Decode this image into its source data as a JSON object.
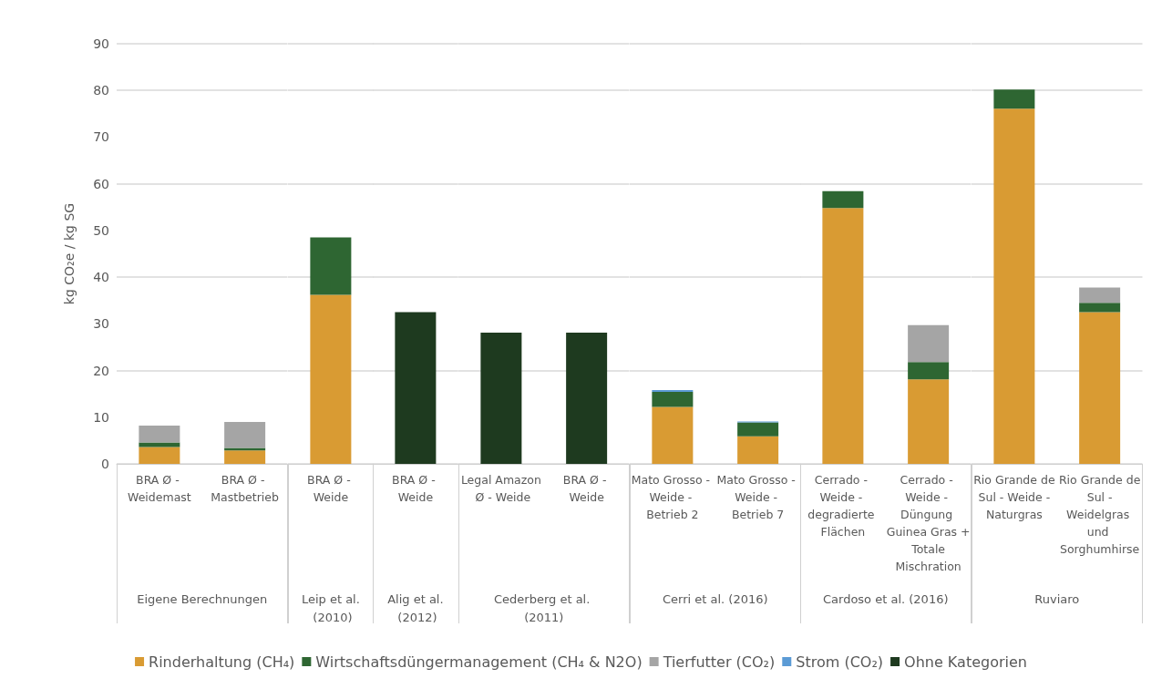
{
  "chart_data": [
    {
      "type": "bar",
      "stacked": true,
      "ylabel": "kg CO₂e / kg SG",
      "xlabel": "Eigene Berechnungen",
      "categories": [
        "BRA Ø - Weidemast",
        "BRA Ø - Mastbetrieb"
      ],
      "ylim": [
        0,
        90
      ],
      "yticks": [
        0,
        10,
        20,
        30,
        40,
        50,
        60,
        70,
        80,
        90
      ],
      "grid": "y",
      "legend": "bottom",
      "series": [
        {
          "name": "Rinderhaltung (CH₄)",
          "color": "#d99b33",
          "values": [
            3.6,
            2.9
          ]
        },
        {
          "name": "Wirtschaftsdüngermanagement (CH₄ & N2O)",
          "color": "#2e6632",
          "values": [
            1.0,
            0.5
          ]
        },
        {
          "name": "Tierfutter (CO₂)",
          "color": "#a5a5a5",
          "values": [
            3.6,
            5.6
          ]
        },
        {
          "name": "Strom (CO₂)",
          "color": "#5b9bd5",
          "values": [
            null,
            null
          ]
        },
        {
          "name": "Ohne Kategorien",
          "color": "#1e3a1f",
          "values": [
            null,
            null
          ]
        }
      ]
    },
    {
      "type": "bar",
      "stacked": true,
      "xlabel": "Leip et al. (2010)",
      "categories": [
        "BRA Ø - Weide"
      ],
      "ylim": [
        0,
        90
      ],
      "yticks": [
        0,
        10,
        20,
        30,
        40,
        50,
        60,
        70,
        80,
        90
      ],
      "grid": "y",
      "tick_labels": "x",
      "series": [
        {
          "color": "#d99b33",
          "values": [
            36.2
          ]
        },
        {
          "color": "#2e6632",
          "values": [
            12.3
          ]
        }
      ]
    },
    {
      "type": "bar",
      "stacked": true,
      "xlabel": "Alig et al. (2012)",
      "categories": [
        "BRA Ø - Weide"
      ],
      "ylim": [
        0,
        90
      ],
      "yticks": [
        0,
        10,
        20,
        30,
        40,
        50,
        60,
        70,
        80,
        90
      ],
      "grid": "y",
      "tick_labels": "x",
      "series": [
        {
          "color": "#1e3a1f",
          "values": [
            32.5
          ]
        }
      ]
    },
    {
      "type": "bar",
      "stacked": true,
      "xlabel": "Cederberg et al. (2011)",
      "categories": [
        "Legal Amazon Ø - Weide",
        "BRA Ø - Weide"
      ],
      "ylim": [
        0,
        90
      ],
      "yticks": [
        0,
        10,
        20,
        30,
        40,
        50,
        60,
        70,
        80,
        90
      ],
      "grid": "y",
      "tick_labels": "x",
      "series": [
        {
          "color": "#1e3a1f",
          "values": [
            28.1,
            28.1
          ]
        }
      ]
    },
    {
      "type": "bar",
      "stacked": true,
      "xlabel": "Cerri et al. (2016)",
      "categories": [
        "Mato Grosso - Weide - Betrieb 2",
        "Mato Grosso - Weide - Betrieb 7"
      ],
      "ylim": [
        0,
        90
      ],
      "yticks": [
        0,
        10,
        20,
        30,
        40,
        50,
        60,
        70,
        80,
        90
      ],
      "grid": "y",
      "tick_labels": "x",
      "series": [
        {
          "color": "#d99b33",
          "values": [
            12.2,
            5.9
          ]
        },
        {
          "color": "#2e6632",
          "values": [
            3.2,
            3.0
          ]
        },
        {
          "color": "#5b9bd5",
          "values": [
            0.4,
            0.2
          ]
        }
      ]
    },
    {
      "type": "bar",
      "stacked": true,
      "xlabel": "Cardoso et al. (2016)",
      "categories": [
        "Cerrado - Weide - degradierte Flächen",
        "Cerrado - Weide - Düngung Guinea Gras + Totale Mischration"
      ],
      "ylim": [
        0,
        90
      ],
      "yticks": [
        0,
        10,
        20,
        30,
        40,
        50,
        60,
        70,
        80,
        90
      ],
      "grid": "y",
      "tick_labels": "x",
      "series": [
        {
          "color": "#d99b33",
          "values": [
            54.8,
            18.1
          ]
        },
        {
          "color": "#2e6632",
          "values": [
            3.6,
            3.7
          ]
        },
        {
          "color": "#a5a5a5",
          "values": [
            null,
            7.9
          ]
        }
      ]
    },
    {
      "type": "bar",
      "stacked": true,
      "xlabel": "Ruviaro",
      "categories": [
        "Rio Grande de Sul - Weide - Naturgras",
        "Rio Grande de Sul - Weidelgras und Sorghumhirse"
      ],
      "ylim": [
        0,
        90
      ],
      "yticks": [
        0,
        10,
        20,
        30,
        40,
        50,
        60,
        70,
        80,
        90
      ],
      "grid": "y",
      "tick_labels": "x",
      "series": [
        {
          "color": "#d99b33",
          "values": [
            76.1,
            32.5
          ]
        },
        {
          "color": "#2e6632",
          "values": [
            4.1,
            2.0
          ]
        },
        {
          "color": "#a5a5a5",
          "values": [
            null,
            3.3
          ]
        }
      ]
    }
  ]
}
